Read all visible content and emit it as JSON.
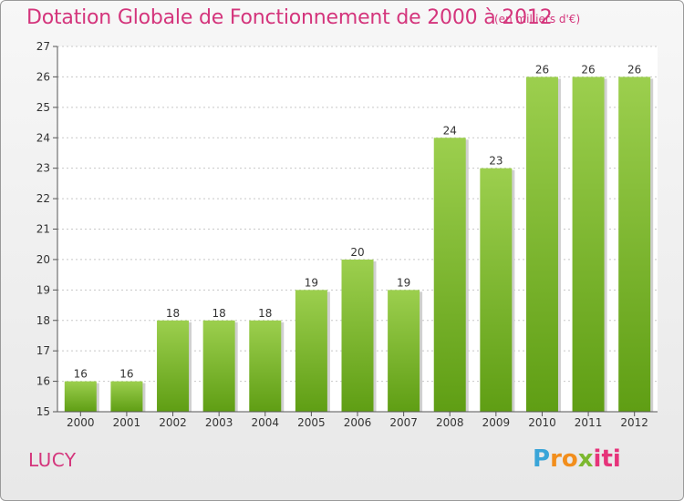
{
  "header": {
    "title": "Dotation Globale de Fonctionnement de 2000 à 2012",
    "unit": "(en milliers d'€)"
  },
  "commune": "LUCY",
  "brand": {
    "p1": "P",
    "p2": "ro",
    "p3": "x",
    "p4": "iti"
  },
  "colors": {
    "bar_top": "#9ccf4e",
    "bar_bottom": "#5f9e14",
    "accent": "#d4357c"
  },
  "chart_data": {
    "type": "bar",
    "title": "Dotation Globale de Fonctionnement de 2000 à 2012",
    "subtitle": "(en milliers d'€)",
    "categories": [
      "2000",
      "2001",
      "2002",
      "2003",
      "2004",
      "2005",
      "2006",
      "2007",
      "2008",
      "2009",
      "2010",
      "2011",
      "2012"
    ],
    "values": [
      16,
      16,
      18,
      18,
      18,
      19,
      20,
      19,
      24,
      23,
      26,
      26,
      26
    ],
    "xlabel": "",
    "ylabel": "",
    "ylim": [
      15,
      27
    ],
    "yticks": [
      15,
      16,
      17,
      18,
      19,
      20,
      21,
      22,
      23,
      24,
      25,
      26,
      27
    ],
    "grid": true
  }
}
